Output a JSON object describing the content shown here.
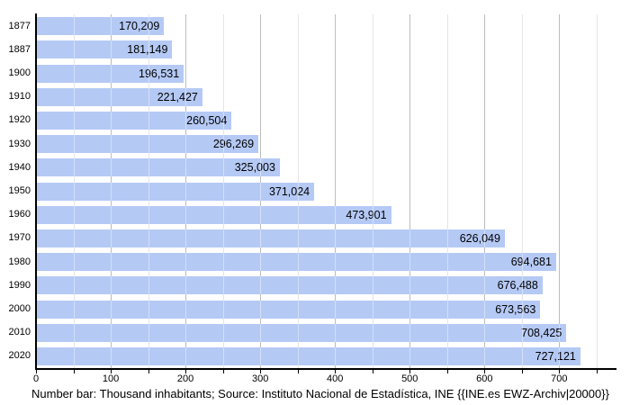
{
  "chart_data": {
    "type": "bar",
    "orientation": "horizontal",
    "title": "",
    "xlabel": "",
    "ylabel": "",
    "categories": [
      "1877",
      "1887",
      "1900",
      "1910",
      "1920",
      "1930",
      "1940",
      "1950",
      "1960",
      "1970",
      "1980",
      "1990",
      "2000",
      "2010",
      "2020"
    ],
    "values": [
      170209,
      181149,
      196531,
      221427,
      260504,
      296269,
      325003,
      371024,
      473901,
      626049,
      694681,
      676488,
      673563,
      708425,
      727121
    ],
    "value_labels": [
      "170,209",
      "181,149",
      "196,531",
      "221,427",
      "260,504",
      "296,269",
      "325,003",
      "371,024",
      "473,901",
      "626,049",
      "694,681",
      "676,488",
      "673,563",
      "708,425",
      "727,121"
    ],
    "x_axis": {
      "unit": "thousand inhabitants",
      "tick_values": [
        0,
        100,
        200,
        300,
        400,
        500,
        600,
        700
      ],
      "tick_labels": [
        "0",
        "100",
        "200",
        "300",
        "400",
        "500",
        "600",
        "700"
      ],
      "minor_tick_step": 50,
      "max_gridline": 750,
      "range": [
        0,
        775
      ]
    },
    "grid": "on",
    "legend": "none",
    "caption": "Number bar: Thousand inhabitants; Source: Instituto Nacional de Estadística, INE {{INE.es EWZ-Archiv|20000}}",
    "colors": {
      "bar": "#b5c9f5",
      "grid_major": "#8c8c8c",
      "grid_minor": "#d2d2d2",
      "axis": "#000000",
      "text": "#000000",
      "background": "#ffffff"
    }
  }
}
